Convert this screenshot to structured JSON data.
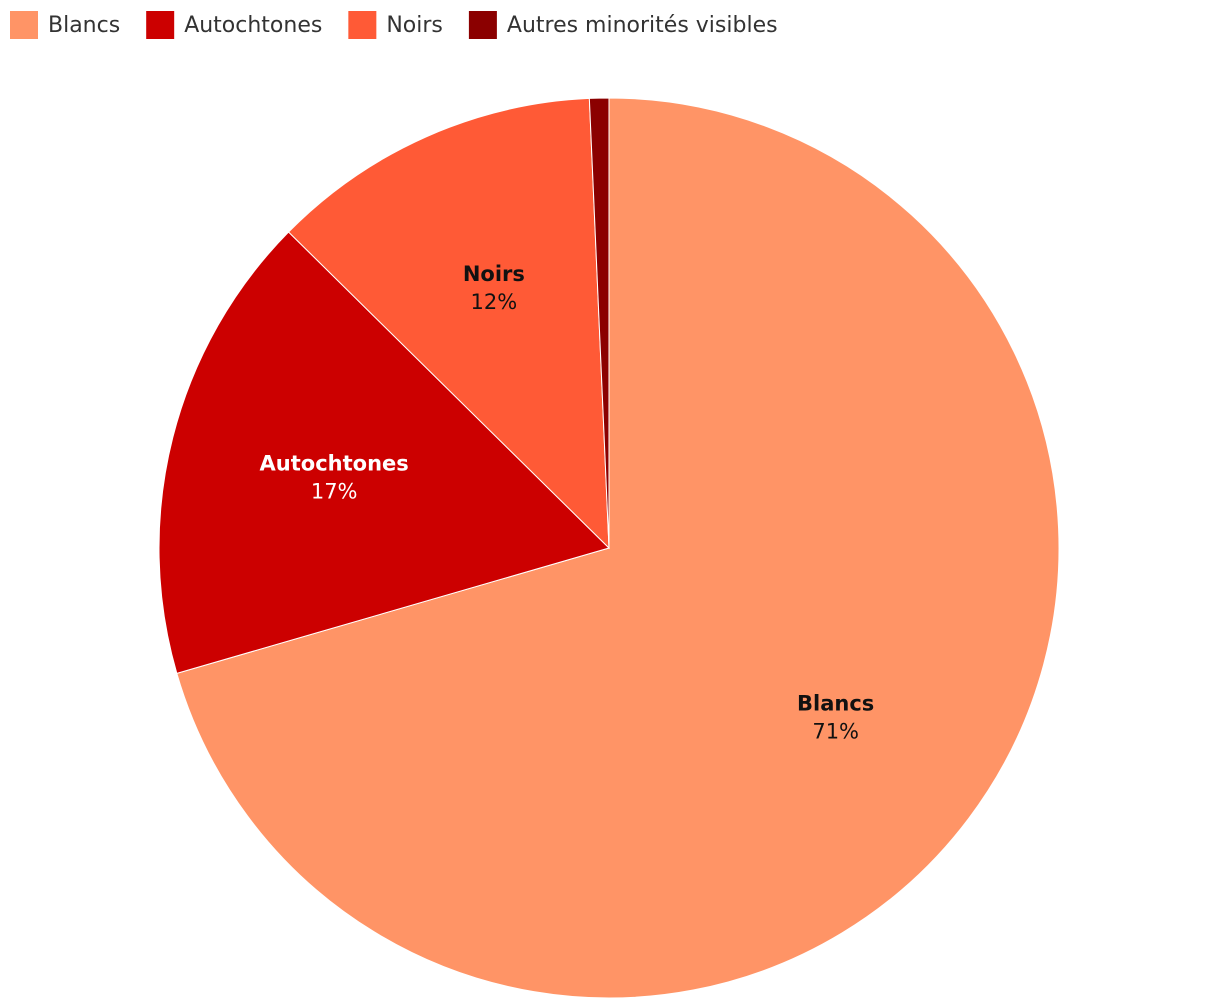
{
  "chart_data": {
    "type": "pie",
    "categories": [
      "Blancs",
      "Autochtones",
      "Noirs",
      "Autres minorités visibles"
    ],
    "values": [
      71,
      17,
      12,
      0.7
    ],
    "value_labels": [
      "71%",
      "17%",
      "12%",
      null
    ],
    "colors": [
      "#ff9466",
      "#cc0000",
      "#ff5a36",
      "#8b0000"
    ],
    "legend": "top-left"
  }
}
